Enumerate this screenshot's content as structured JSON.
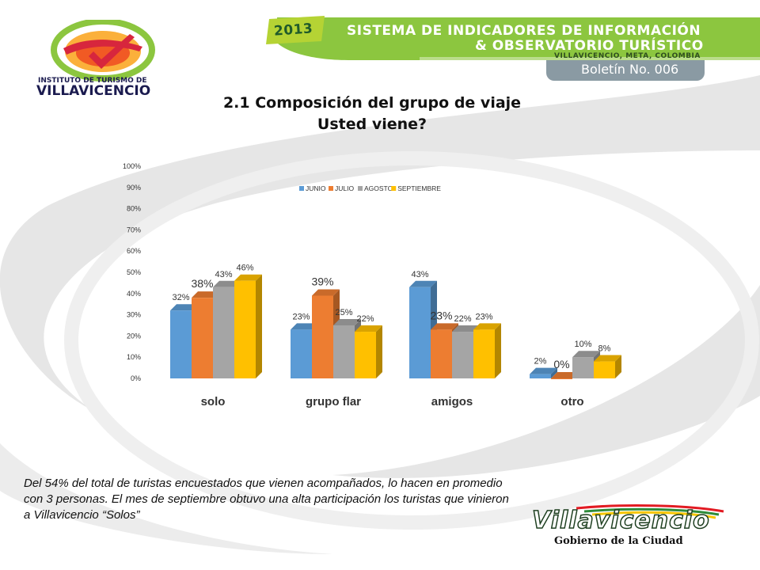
{
  "header": {
    "year": "2013",
    "title_line1": "SISTEMA DE INDICADORES DE INFORMACIÓN",
    "title_line2": "& OBSERVATORIO TURÍSTICO",
    "location": "VILLAVICENCIO, META, COLOMBIA",
    "bulletin": "Boletín No. 006"
  },
  "logo_left": {
    "line1": "INSTITUTO DE TURISMO DE",
    "line2": "VILLAVICENCIO"
  },
  "logo_right": {
    "name": "Villavicencio",
    "subtitle": "Gobierno de la Ciudad"
  },
  "title": {
    "line1": "2.1 Composición del grupo de viaje",
    "line2": "Usted viene?"
  },
  "note": "Del 54% del total de turistas encuestados que vienen acompañados, lo hacen en promedio con 3 personas. El mes de septiembre obtuvo una alta participación los turistas que vinieron a Villavicencio “Solos”",
  "colors": {
    "header_green": "#8cc63f",
    "year_badge": "#b5d334",
    "swoosh_gray": "#e4e4e4"
  },
  "chart_data": {
    "type": "bar",
    "categories": [
      "solo",
      "grupo flar",
      "amigos",
      "otro"
    ],
    "series": [
      {
        "name": "JUNIO",
        "color": "#5b9bd5",
        "values": [
          32,
          23,
          43,
          2
        ],
        "labels": [
          "32%",
          "23%",
          "43%",
          "2%"
        ]
      },
      {
        "name": "JULIO",
        "color": "#ed7d31",
        "values": [
          38,
          39,
          23,
          0
        ],
        "labels": [
          "38%",
          "39%",
          "23%",
          "0%"
        ]
      },
      {
        "name": "AGOSTO",
        "color": "#a5a5a5",
        "values": [
          43,
          25,
          22,
          10
        ],
        "labels": [
          "43%",
          "25%",
          "22%",
          "10%"
        ]
      },
      {
        "name": "SEPTIEMBRE",
        "color": "#ffc000",
        "values": [
          46,
          22,
          23,
          8
        ],
        "labels": [
          "46%",
          "22%",
          "23%",
          "8%"
        ]
      }
    ],
    "ylim": [
      0,
      100
    ],
    "yticks": [
      "0%",
      "10%",
      "20%",
      "30%",
      "40%",
      "50%",
      "60%",
      "70%",
      "80%",
      "90%",
      "100%"
    ],
    "legend_position": "top",
    "grid": false,
    "style": "3d-columns"
  }
}
